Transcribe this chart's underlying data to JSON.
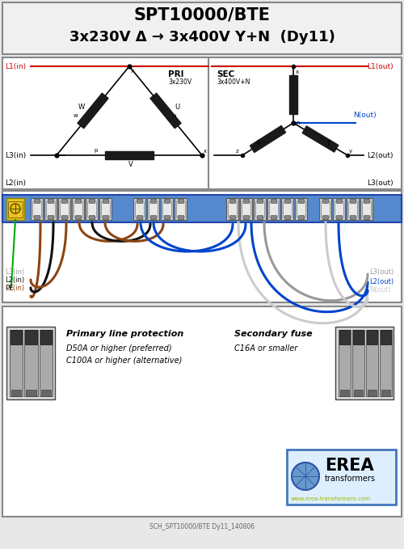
{
  "title_line1": "SPT10000/BTE",
  "title_line2": "3x230V Δ → 3x400V Y+N  (Dy11)",
  "bg_color": "#e8e8e8",
  "title_bg": "#f0f0f0",
  "schem_bg": "#ffffff",
  "wire_bg": "#ffffff",
  "fuse_bg": "#ffffff",
  "pri_label": "PRI",
  "pri_sublabel": "3x230V",
  "sec_label": "SEC",
  "sec_sublabel": "3x400V+N",
  "footer_text": "SCH_SPT10000/BTE Dy11_140806",
  "erea_text": "EREA",
  "erea_sub": "transformers",
  "erea_web": "www.erea-transformers.com",
  "primary_fuse_title": "Primary line protection",
  "primary_fuse_line1": "D50A or higher (preferred)",
  "primary_fuse_line2": "C100A or higher (alternative)",
  "secondary_fuse_title": "Secondary fuse",
  "secondary_fuse_line1": "C16A or smaller",
  "coil_color": "#1a1a1a",
  "line_color": "#1a1a1a",
  "red_color": "#cc0000",
  "blue_color": "#0044cc",
  "brown_color": "#8B4513",
  "grey_color": "#999999",
  "lgrey_color": "#cccccc",
  "terminal_blue": "#5588cc",
  "terminal_grey": "#aaaaaa"
}
